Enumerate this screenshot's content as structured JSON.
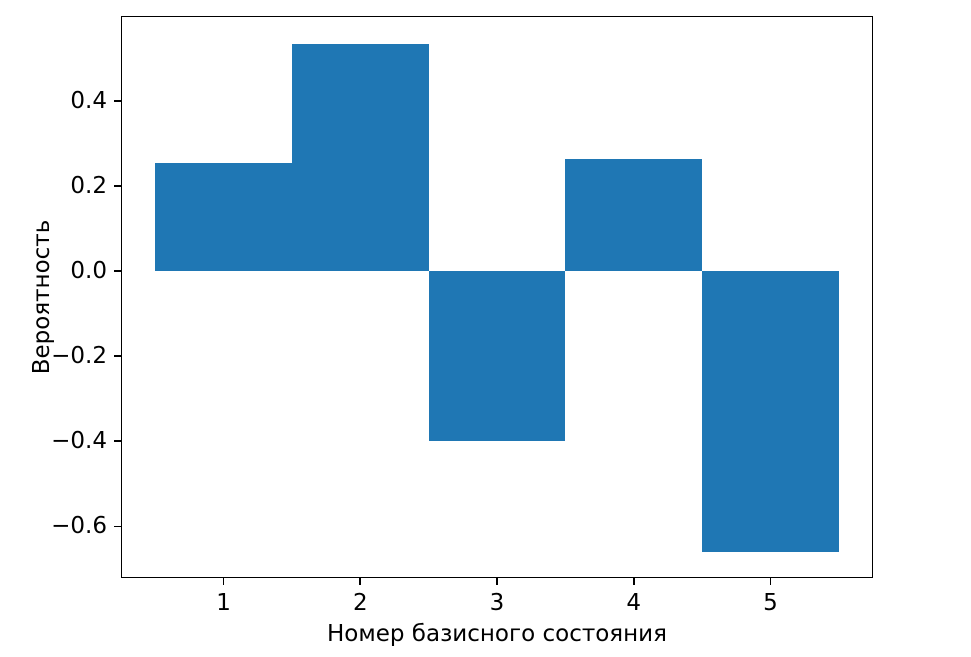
{
  "figure": {
    "background": "#ffffff"
  },
  "chart_data": {
    "type": "bar",
    "title": "",
    "xlabel": "Номер базисного состояния",
    "ylabel": "Вероятность",
    "categories": [
      1,
      2,
      3,
      4,
      5
    ],
    "values": [
      0.255,
      0.535,
      -0.4,
      0.265,
      -0.66
    ],
    "bar_width": 1.0,
    "bar_color": "#1f77b4",
    "xlim": [
      0.25,
      5.75
    ],
    "ylim": [
      -0.72,
      0.6
    ],
    "xticks": [
      {
        "value": 1,
        "label": "1"
      },
      {
        "value": 2,
        "label": "2"
      },
      {
        "value": 3,
        "label": "3"
      },
      {
        "value": 4,
        "label": "4"
      },
      {
        "value": 5,
        "label": "5"
      }
    ],
    "yticks": [
      {
        "value": 0.4,
        "label": "0.4"
      },
      {
        "value": 0.2,
        "label": "0.2"
      },
      {
        "value": 0.0,
        "label": "0.0"
      },
      {
        "value": -0.2,
        "label": "−0.2"
      },
      {
        "value": -0.4,
        "label": "−0.4"
      },
      {
        "value": -0.6,
        "label": "−0.6"
      }
    ],
    "grid": false,
    "legend": null,
    "spine_color": "#000000",
    "text_color": "#000000",
    "plot_background": "#ffffff"
  }
}
